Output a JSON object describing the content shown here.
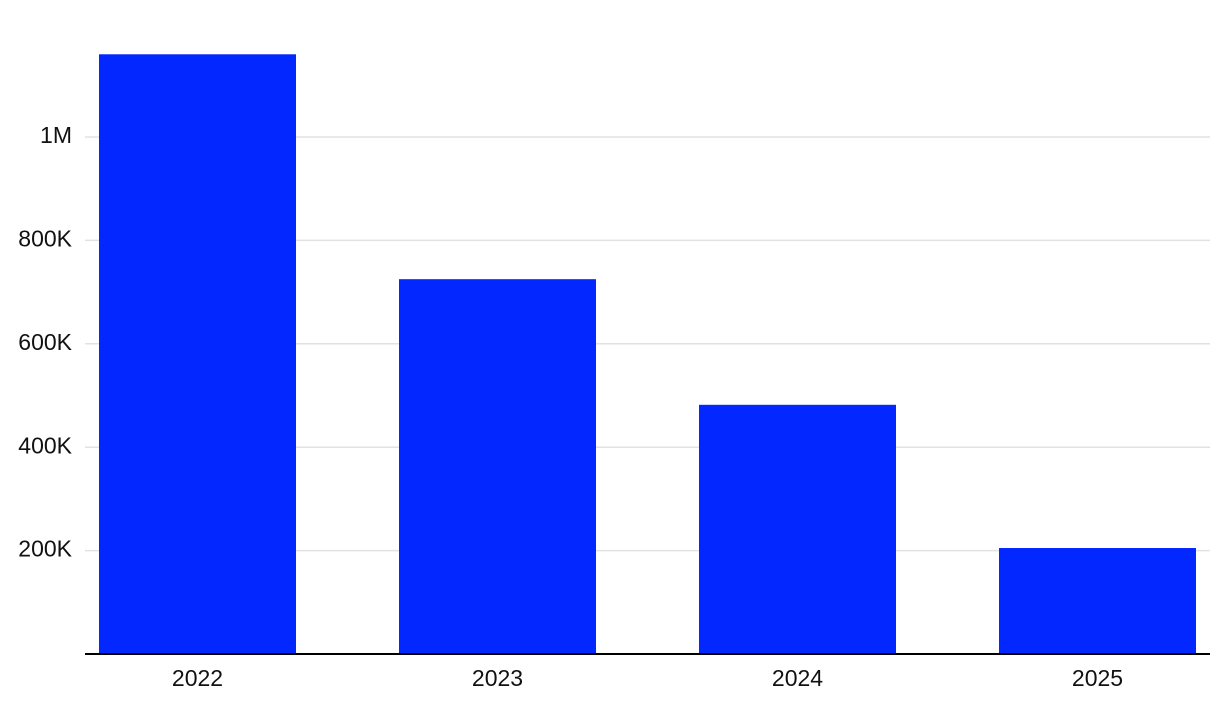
{
  "chart_data": {
    "type": "bar",
    "categories": [
      "2022",
      "2023",
      "2024",
      "2025"
    ],
    "values": [
      1160000,
      725000,
      482000,
      205000
    ],
    "color": "#0328ff",
    "ylim": [
      0,
      1200000
    ],
    "yticks": [
      {
        "value": 200000,
        "label": "200K"
      },
      {
        "value": 400000,
        "label": "400K"
      },
      {
        "value": 600000,
        "label": "600K"
      },
      {
        "value": 800000,
        "label": "800K"
      },
      {
        "value": 1000000,
        "label": "1M"
      }
    ],
    "grid": true
  }
}
